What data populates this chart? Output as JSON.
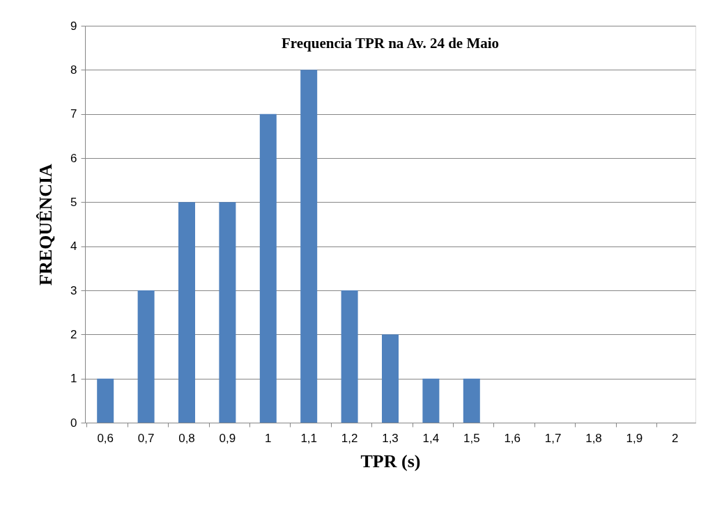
{
  "chart_data": {
    "type": "bar",
    "title": "Frequencia TPR na Av. 24 de Maio",
    "xlabel": "TPR (s)",
    "ylabel": "FREQUÊNCIA",
    "categories": [
      "0,6",
      "0,7",
      "0,8",
      "0,9",
      "1",
      "1,1",
      "1,2",
      "1,3",
      "1,4",
      "1,5",
      "1,6",
      "1,7",
      "1,8",
      "1,9",
      "2"
    ],
    "values": [
      1,
      3,
      5,
      5,
      7,
      8,
      3,
      2,
      1,
      1,
      0,
      0,
      0,
      0,
      0
    ],
    "color": "#4f81bd",
    "ylim": [
      0,
      9
    ],
    "yticks": [
      0,
      1,
      2,
      3,
      4,
      5,
      6,
      7,
      8,
      9
    ],
    "grid": "y"
  }
}
